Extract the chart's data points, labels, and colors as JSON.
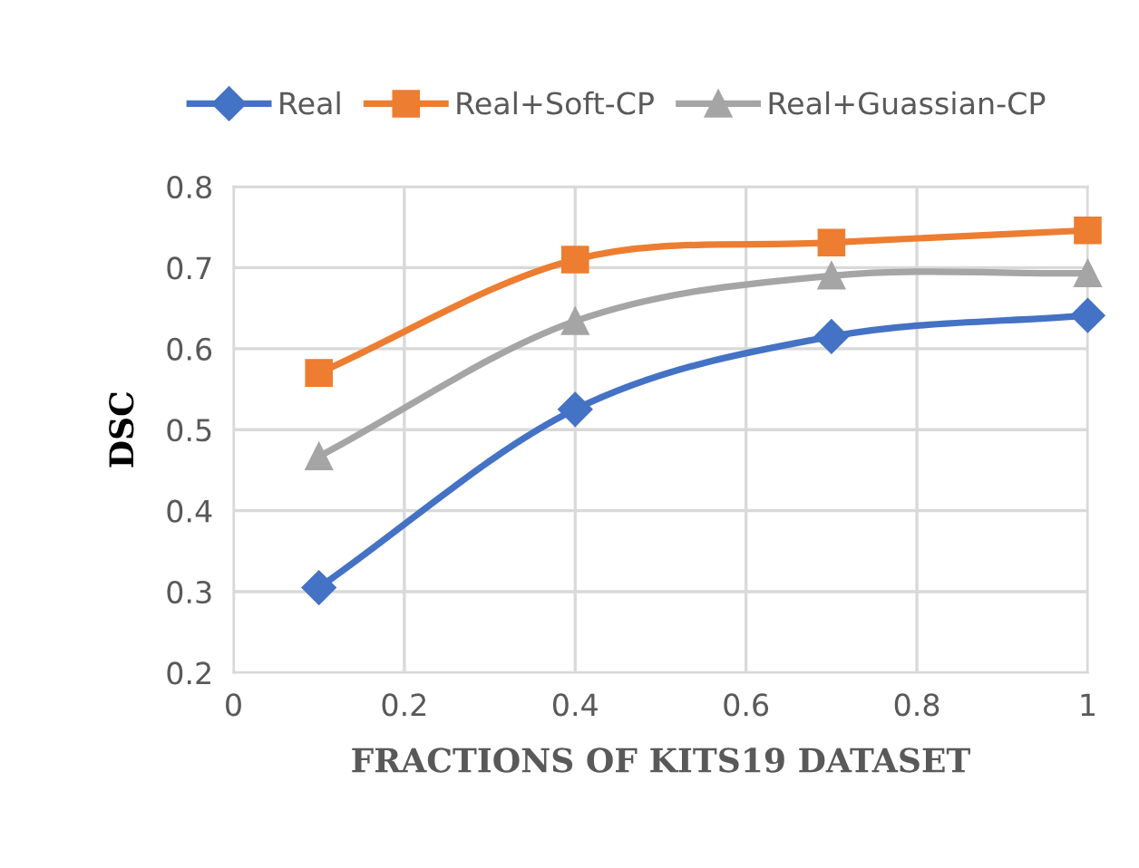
{
  "chart_data": {
    "type": "line",
    "xlabel": "FRACTIONS OF KITS19 DATASET",
    "ylabel": "DSC",
    "x": [
      0.1,
      0.4,
      0.7,
      1.0
    ],
    "series": [
      {
        "name": "Real",
        "color": "#4472c4",
        "marker": "diamond",
        "values": [
          0.305,
          0.525,
          0.615,
          0.641
        ]
      },
      {
        "name": "Real+Soft-CP",
        "color": "#ed7d31",
        "marker": "square",
        "values": [
          0.57,
          0.71,
          0.731,
          0.746
        ]
      },
      {
        "name": "Real+Guassian-CP",
        "color": "#a5a5a5",
        "marker": "triangle",
        "values": [
          0.467,
          0.634,
          0.69,
          0.693
        ]
      }
    ],
    "xlim": [
      0,
      1
    ],
    "xticks": [
      0,
      0.2,
      0.4,
      0.6,
      0.8,
      1
    ],
    "ylim": [
      0.2,
      0.8
    ],
    "yticks": [
      0.2,
      0.3,
      0.4,
      0.5,
      0.6,
      0.7,
      0.8
    ],
    "grid": true,
    "legend": "top",
    "line_style": "solid"
  }
}
